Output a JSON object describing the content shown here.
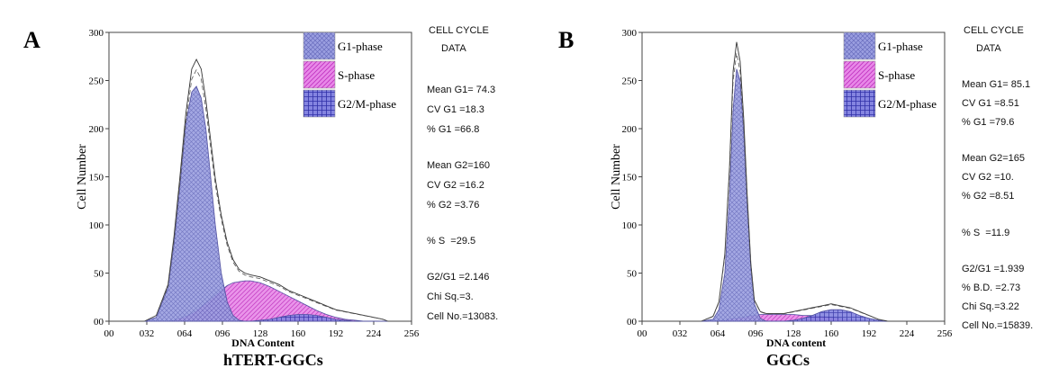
{
  "panels": [
    {
      "letter": "A",
      "caption": "hTERT-GGCs",
      "header_lines": [
        "CELL  CYCLE",
        "DATA"
      ],
      "stats": [
        "Mean G1= 74.3",
        "CV G1 =18.3",
        "% G1 =66.8",
        "",
        "Mean G2=160",
        "CV G2 =16.2",
        "% G2 =3.76",
        "",
        "% S  =29.5",
        "",
        "G2/G1 =2.146",
        "Chi Sq.=3.",
        "Cell No.=13083."
      ]
    },
    {
      "letter": "B",
      "caption": "GGCs",
      "header_lines": [
        "CELL  CYCLE",
        "DATA"
      ],
      "stats": [
        "Mean G1= 85.1",
        "CV G1 =8.51",
        "% G1 =79.6",
        "",
        "Mean G2=165",
        "CV G2 =10.",
        "% G2 =8.51",
        "",
        "% S  =11.9",
        "",
        "G2/G1 =1.939",
        "% B.D. =2.73",
        "Chi Sq.=3.22",
        "Cell No.=15839."
      ]
    }
  ],
  "chart_data": [
    {
      "type": "area",
      "xlabel": "DNA Content",
      "ylabel": "Cell Number",
      "xlim": [
        0,
        256
      ],
      "ylim": [
        0,
        300
      ],
      "x_ticks": [
        0,
        32,
        64,
        96,
        128,
        160,
        192,
        224,
        256
      ],
      "x_tick_labels": [
        "00",
        "032",
        "064",
        "096",
        "128",
        "160",
        "192",
        "224",
        "256"
      ],
      "y_ticks": [
        0,
        50,
        100,
        150,
        200,
        250,
        300
      ],
      "y_tick_labels": [
        "00",
        "50",
        "100",
        "150",
        "200",
        "250",
        "300"
      ],
      "legend": [
        {
          "name": "G1-phase",
          "color": "#9a9ee0"
        },
        {
          "name": "S-phase",
          "color": "#e070e0"
        },
        {
          "name": "G2/M-phase",
          "color": "#5a5ad0"
        }
      ],
      "legend_position": "top-right",
      "x": [
        30,
        40,
        50,
        55,
        60,
        65,
        70,
        74,
        78,
        82,
        86,
        90,
        95,
        100,
        105,
        110,
        115,
        120,
        128,
        136,
        144,
        152,
        160,
        168,
        176,
        184,
        192,
        200,
        208,
        216,
        224,
        232,
        236
      ],
      "series": [
        {
          "name": "G1-phase",
          "values": [
            0,
            4,
            35,
            80,
            140,
            205,
            238,
            244,
            232,
            200,
            150,
            100,
            50,
            20,
            6,
            1,
            0,
            0,
            0,
            0,
            0,
            0,
            0,
            0,
            0,
            0,
            0,
            0,
            0,
            0,
            0,
            0,
            0
          ]
        },
        {
          "name": "S-phase",
          "values": [
            0,
            0,
            0,
            1,
            3,
            5,
            8,
            11,
            15,
            19,
            23,
            27,
            32,
            37,
            40,
            41,
            42,
            42,
            40,
            36,
            31,
            26,
            21,
            16,
            11,
            7,
            4,
            2,
            1,
            0,
            0,
            0,
            0
          ]
        },
        {
          "name": "G2/M-phase",
          "values": [
            0,
            0,
            0,
            0,
            0,
            0,
            0,
            0,
            0,
            0,
            0,
            0,
            0,
            0,
            0,
            0,
            0,
            0,
            1,
            2,
            4,
            6,
            7,
            7,
            6,
            4,
            2,
            1,
            0,
            0,
            0,
            0,
            0
          ]
        },
        {
          "name": "Data",
          "values": [
            0,
            6,
            38,
            88,
            150,
            215,
            262,
            272,
            262,
            230,
            188,
            148,
            110,
            82,
            64,
            54,
            50,
            48,
            46,
            42,
            38,
            32,
            28,
            24,
            20,
            16,
            12,
            10,
            8,
            6,
            4,
            2,
            0
          ]
        }
      ]
    },
    {
      "type": "area",
      "xlabel": "DNA content",
      "ylabel": "Cell Number",
      "xlim": [
        0,
        256
      ],
      "ylim": [
        0,
        300
      ],
      "x_ticks": [
        0,
        32,
        64,
        96,
        128,
        160,
        192,
        224,
        256
      ],
      "x_tick_labels": [
        "00",
        "032",
        "064",
        "096",
        "128",
        "160",
        "192",
        "224",
        "256"
      ],
      "y_ticks": [
        0,
        50,
        100,
        150,
        200,
        250,
        300
      ],
      "y_tick_labels": [
        "00",
        "50",
        "100",
        "150",
        "200",
        "250",
        "300"
      ],
      "legend": [
        {
          "name": "G1-phase",
          "color": "#9a9ee0"
        },
        {
          "name": "S-phase",
          "color": "#e070e0"
        },
        {
          "name": "G2/M-phase",
          "color": "#5a5ad0"
        }
      ],
      "legend_position": "top-right",
      "x": [
        50,
        60,
        65,
        70,
        74,
        77,
        80,
        83,
        86,
        89,
        92,
        95,
        100,
        105,
        110,
        120,
        128,
        136,
        144,
        152,
        160,
        168,
        176,
        184,
        192,
        200,
        208
      ],
      "series": [
        {
          "name": "G1-phase",
          "values": [
            0,
            2,
            12,
            50,
            130,
            220,
            262,
            250,
            195,
            120,
            55,
            18,
            3,
            0,
            0,
            0,
            0,
            0,
            0,
            0,
            0,
            0,
            0,
            0,
            0,
            0,
            0
          ]
        },
        {
          "name": "S-phase",
          "values": [
            0,
            0,
            1,
            1,
            2,
            3,
            3,
            4,
            4,
            5,
            6,
            6,
            7,
            7,
            7,
            7,
            7,
            6,
            6,
            5,
            4,
            3,
            2,
            1,
            0,
            0,
            0
          ]
        },
        {
          "name": "G2/M-phase",
          "values": [
            0,
            0,
            0,
            0,
            0,
            0,
            0,
            0,
            0,
            0,
            0,
            0,
            0,
            0,
            0,
            0,
            1,
            3,
            6,
            10,
            12,
            12,
            10,
            6,
            3,
            1,
            0
          ]
        },
        {
          "name": "Data",
          "values": [
            0,
            5,
            20,
            70,
            160,
            260,
            290,
            270,
            210,
            130,
            60,
            22,
            10,
            8,
            8,
            8,
            10,
            12,
            14,
            16,
            18,
            16,
            14,
            10,
            6,
            2,
            0
          ]
        }
      ]
    }
  ]
}
